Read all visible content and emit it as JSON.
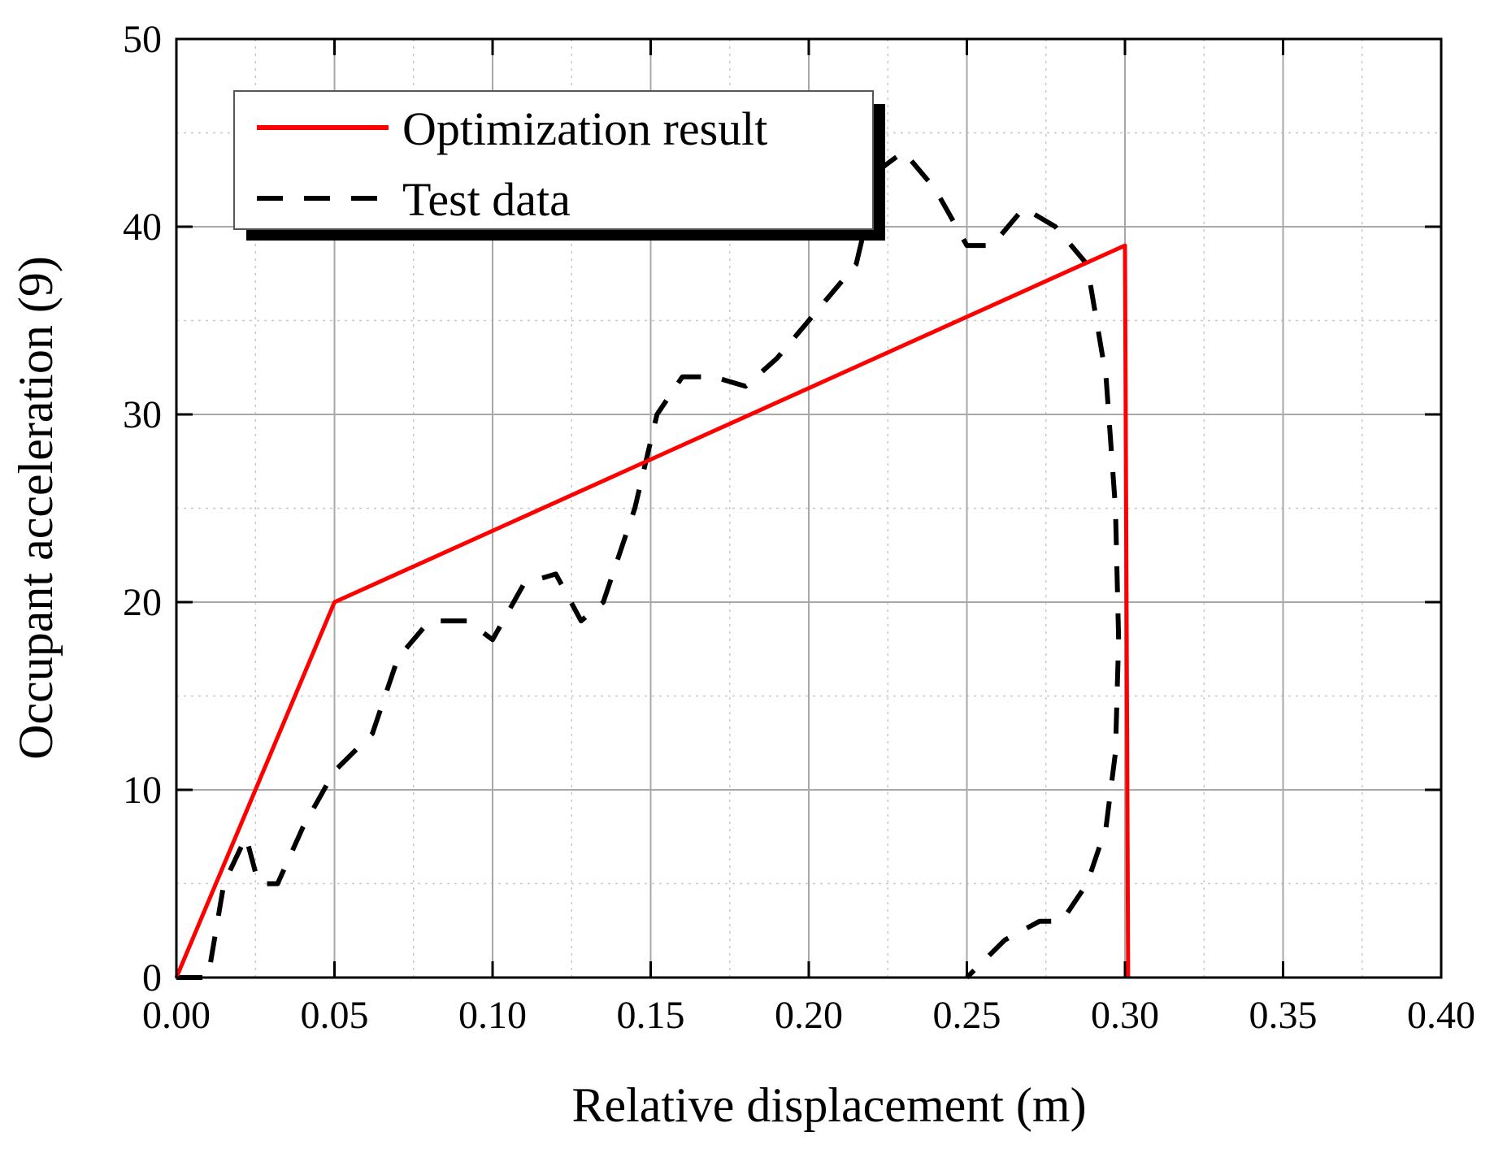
{
  "chart_data": {
    "type": "line",
    "title": "",
    "xlabel": "Relative displacement (m)",
    "ylabel": "Occupant acceleration (9)",
    "xlim": [
      0,
      0.4
    ],
    "ylim": [
      0,
      50
    ],
    "xticks": [
      "0.00",
      "0.05",
      "0.10",
      "0.15",
      "0.20",
      "0.25",
      "0.30",
      "0.35",
      "0.40"
    ],
    "yticks": [
      "0",
      "10",
      "20",
      "30",
      "40",
      "50"
    ],
    "grid": true,
    "legend_position": "top-left",
    "series": [
      {
        "name": "Optimization result",
        "color": "#ff0000",
        "style": "solid",
        "x": [
          0.0,
          0.05,
          0.3,
          0.301
        ],
        "y": [
          0,
          20,
          39,
          0
        ]
      },
      {
        "name": "Test data",
        "color": "#000000",
        "style": "dashed",
        "x": [
          0.0,
          0.01,
          0.015,
          0.022,
          0.026,
          0.032,
          0.04,
          0.05,
          0.062,
          0.07,
          0.08,
          0.092,
          0.1,
          0.11,
          0.12,
          0.128,
          0.135,
          0.145,
          0.152,
          0.16,
          0.17,
          0.18,
          0.19,
          0.205,
          0.215,
          0.222,
          0.23,
          0.24,
          0.25,
          0.258,
          0.268,
          0.278,
          0.288,
          0.294,
          0.297,
          0.298,
          0.297,
          0.294,
          0.288,
          0.28,
          0.273,
          0.262,
          0.25
        ],
        "y": [
          0,
          0,
          5,
          7.5,
          5,
          5,
          8,
          11,
          13,
          17,
          19,
          19,
          18,
          21,
          21.5,
          19,
          20,
          25,
          30,
          32,
          32,
          31.5,
          33,
          36,
          38,
          43,
          44,
          42,
          39,
          39,
          41,
          40,
          38,
          32,
          25,
          18,
          12,
          8,
          5,
          3,
          3,
          2,
          0
        ]
      }
    ]
  }
}
